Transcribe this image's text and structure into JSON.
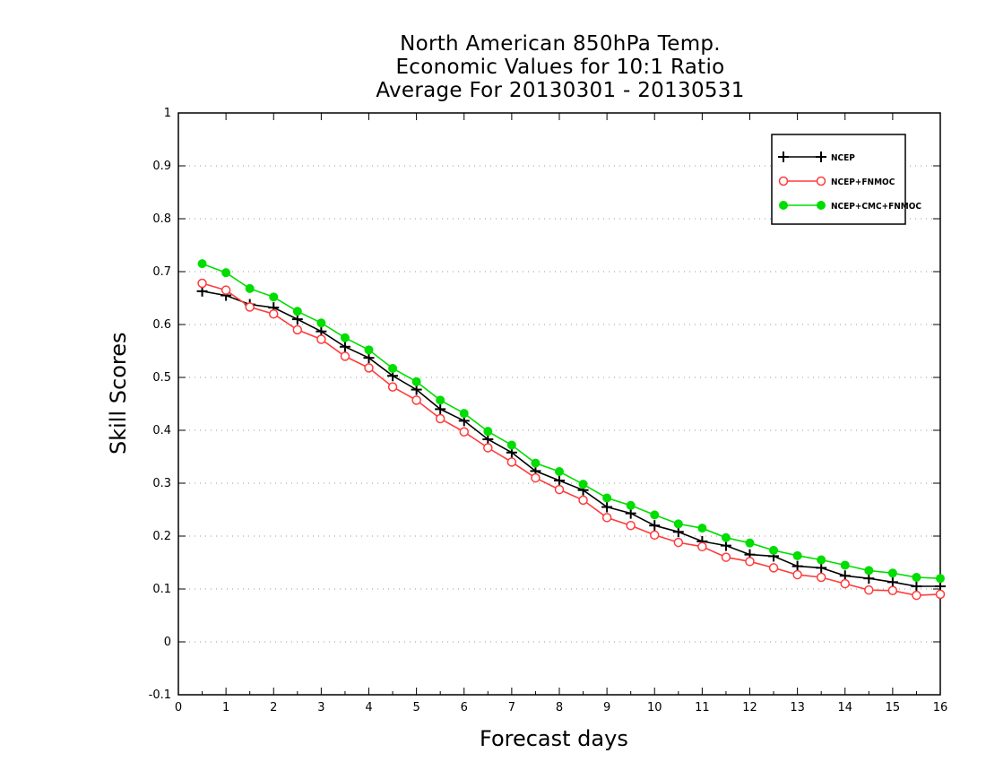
{
  "chart_data": {
    "type": "line",
    "title_lines": [
      "North American 850hPa Temp.",
      "Economic Values for 10:1 Ratio",
      "Average For 20130301 - 20130531"
    ],
    "xlabel": "Forecast days",
    "ylabel": "Skill Scores",
    "xlim": [
      0,
      16
    ],
    "ylim": [
      -0.1,
      1
    ],
    "xticks": [
      0,
      1,
      2,
      3,
      4,
      5,
      6,
      7,
      8,
      9,
      10,
      11,
      12,
      13,
      14,
      15,
      16
    ],
    "yticks": [
      -0.1,
      0,
      0.1,
      0.2,
      0.3,
      0.4,
      0.5,
      0.6,
      0.7,
      0.8,
      0.9,
      1
    ],
    "ytick_labels": [
      "-0.1",
      "0",
      "0.1",
      "0.2",
      "0.3",
      "0.4",
      "0.5",
      "0.6",
      "0.7",
      "0.8",
      "0.9",
      "1"
    ],
    "grid": "horizontal-dotted",
    "legend_position": "top-right",
    "x": [
      0.5,
      1,
      1.5,
      2,
      2.5,
      3,
      3.5,
      4,
      4.5,
      5,
      5.5,
      6,
      6.5,
      7,
      7.5,
      8,
      8.5,
      9,
      9.5,
      10,
      10.5,
      11,
      11.5,
      12,
      12.5,
      13,
      13.5,
      14,
      14.5,
      15,
      15.5,
      16
    ],
    "series": [
      {
        "name": "NCEP",
        "color": "#000000",
        "marker": "plus",
        "values": [
          0.663,
          0.655,
          0.638,
          0.632,
          0.61,
          0.587,
          0.558,
          0.537,
          0.503,
          0.477,
          0.44,
          0.418,
          0.383,
          0.358,
          0.323,
          0.305,
          0.287,
          0.255,
          0.243,
          0.22,
          0.208,
          0.19,
          0.182,
          0.165,
          0.162,
          0.143,
          0.14,
          0.125,
          0.12,
          0.113,
          0.105,
          0.105
        ]
      },
      {
        "name": "NCEP+FNMOC",
        "color": "#ff3b3b",
        "marker": "open-circle",
        "values": [
          0.678,
          0.665,
          0.633,
          0.62,
          0.59,
          0.572,
          0.54,
          0.518,
          0.482,
          0.457,
          0.422,
          0.397,
          0.367,
          0.34,
          0.31,
          0.288,
          0.268,
          0.235,
          0.22,
          0.202,
          0.188,
          0.18,
          0.16,
          0.152,
          0.14,
          0.127,
          0.122,
          0.11,
          0.098,
          0.097,
          0.088,
          0.09
        ]
      },
      {
        "name": "NCEP+CMC+FNMOC",
        "color": "#00dd00",
        "marker": "filled-circle",
        "values": [
          0.715,
          0.698,
          0.668,
          0.652,
          0.625,
          0.603,
          0.575,
          0.552,
          0.517,
          0.492,
          0.457,
          0.432,
          0.398,
          0.372,
          0.338,
          0.322,
          0.298,
          0.272,
          0.258,
          0.24,
          0.223,
          0.215,
          0.197,
          0.187,
          0.173,
          0.163,
          0.155,
          0.145,
          0.135,
          0.13,
          0.122,
          0.12
        ]
      }
    ]
  }
}
